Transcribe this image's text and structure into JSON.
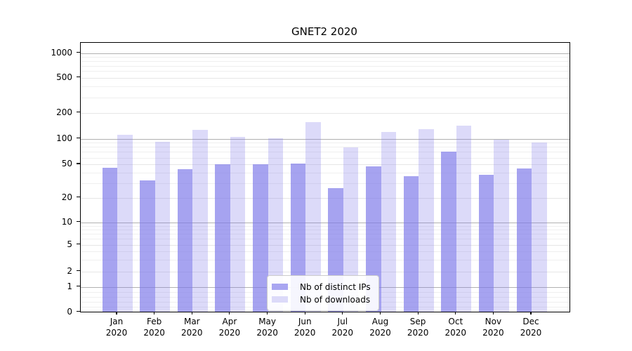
{
  "title": "GNET2 2020",
  "legend": {
    "items": [
      {
        "label": "Nb of distinct IPs",
        "color": "#a9a6f1"
      },
      {
        "label": "Nb of downloads",
        "color": "#dcdaf9"
      }
    ]
  },
  "colors": {
    "bar_ips": "rgba(124,119,233,0.68)",
    "bar_downloads": "rgba(124,119,233,0.27)",
    "grid_decade": "#b1b1b1",
    "grid_labeled": "#e6e6e6",
    "grid_minor": "#efefef"
  },
  "chart_data": {
    "type": "bar",
    "title": "GNET2 2020",
    "xlabel": "",
    "ylabel": "",
    "yscale": "symlog",
    "ylim": [
      0,
      1300
    ],
    "grid": true,
    "legend_position": "lower center",
    "yticks": [
      0,
      1,
      2,
      5,
      10,
      20,
      50,
      100,
      200,
      500,
      1000
    ],
    "minor_yticks": [
      0.2,
      0.4,
      0.6,
      0.8,
      3,
      4,
      6,
      7,
      8,
      9,
      30,
      40,
      60,
      70,
      80,
      90,
      300,
      400,
      600,
      700,
      800,
      900
    ],
    "categories": [
      "Jan 2020",
      "Feb 2020",
      "Mar 2020",
      "Apr 2020",
      "May 2020",
      "Jun 2020",
      "Jul 2020",
      "Aug 2020",
      "Sep 2020",
      "Oct 2020",
      "Nov 2020",
      "Dec 2020"
    ],
    "x_months": [
      "Jan",
      "Feb",
      "Mar",
      "Apr",
      "May",
      "Jun",
      "Jul",
      "Aug",
      "Sep",
      "Oct",
      "Nov",
      "Dec"
    ],
    "x_year": "2020",
    "series": [
      {
        "name": "Nb of distinct IPs",
        "values": [
          45,
          32,
          43,
          50,
          50,
          51,
          26,
          47,
          36,
          70,
          37,
          44
        ]
      },
      {
        "name": "Nb of downloads",
        "values": [
          110,
          92,
          127,
          105,
          101,
          154,
          78,
          118,
          128,
          140,
          97,
          90
        ]
      }
    ]
  }
}
